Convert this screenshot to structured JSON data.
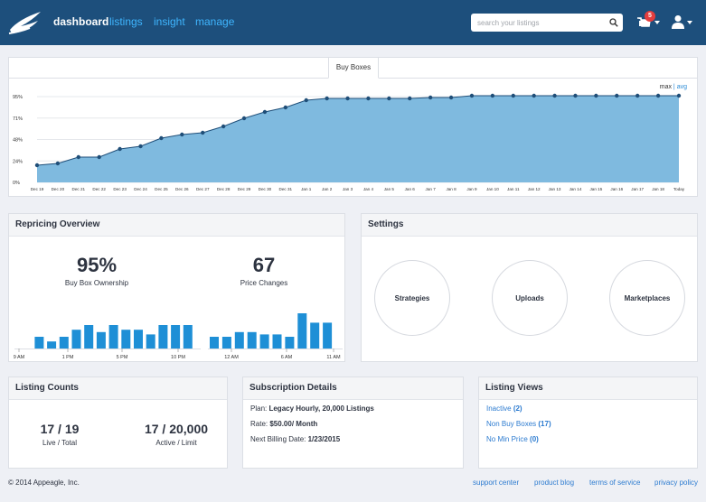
{
  "nav": {
    "links": [
      {
        "label": "dashboard",
        "active": true
      },
      {
        "label": "listings",
        "active": false
      },
      {
        "label": "insight",
        "active": false
      },
      {
        "label": "manage",
        "active": false
      }
    ],
    "search_placeholder": "search your listings",
    "notification_count": "5"
  },
  "buybox": {
    "tab_label": "Buy Boxes",
    "toggle_max": "max",
    "toggle_sep": "|",
    "toggle_avg": "avg"
  },
  "chart_data": {
    "type": "area",
    "x": [
      "Dec 19",
      "Dec 20",
      "Dec 21",
      "Dec 22",
      "Dec 23",
      "Dec 24",
      "Dec 25",
      "Dec 26",
      "Dec 27",
      "Dec 28",
      "Dec 29",
      "Dec 30",
      "Dec 31",
      "Jan 1",
      "Jan 2",
      "Jan 3",
      "Jan 4",
      "Jan 5",
      "Jan 6",
      "Jan 7",
      "Jan 8",
      "Jan 9",
      "Jan 10",
      "Jan 11",
      "Jan 12",
      "Jan 13",
      "Jan 14",
      "Jan 15",
      "Jan 16",
      "Jan 17",
      "Jan 18",
      "Today"
    ],
    "values": [
      19,
      21,
      28,
      28,
      37,
      40,
      49,
      53,
      55,
      62,
      71,
      78,
      83,
      91,
      93,
      93,
      93,
      93,
      93,
      94,
      94,
      96,
      96,
      96,
      96,
      96,
      96,
      96,
      96,
      96,
      96,
      96
    ],
    "yticks": [
      "0%",
      "24%",
      "48%",
      "71%",
      "95%"
    ],
    "ylim": [
      0,
      95
    ],
    "fill_color": "#7fbadf",
    "line_color": "#1f4e78"
  },
  "repricing": {
    "title": "Repricing Overview",
    "buybox_pct": "95%",
    "buybox_label": "Buy Box Ownership",
    "changes": "67",
    "changes_label": "Price Changes",
    "left_bars": [
      0,
      0,
      5,
      3,
      5,
      8,
      10,
      7,
      10,
      8,
      8,
      6,
      10,
      10,
      10
    ],
    "left_ticks": [
      "9 AM",
      "1 PM",
      "5 PM",
      "10 PM"
    ],
    "right_bars": [
      5,
      5,
      7,
      7,
      6,
      6,
      5,
      15,
      11,
      11
    ],
    "right_ticks": [
      "12 AM",
      "6 AM",
      "11 AM"
    ],
    "bar_color": "#1e8fd6"
  },
  "settings": {
    "title": "Settings",
    "buttons": [
      "Strategies",
      "Uploads",
      "Marketplaces"
    ]
  },
  "counts": {
    "title": "Listing Counts",
    "live_total": "17 / 19",
    "live_total_label": "Live / Total",
    "active_limit": "17 / 20,000",
    "active_limit_label": "Active / Limit"
  },
  "subscription": {
    "title": "Subscription Details",
    "plan_label": "Plan:",
    "plan_value": "Legacy Hourly, 20,000 Listings",
    "rate_label": "Rate:",
    "rate_value": "$50.00/ Month",
    "billing_label": "Next Billing Date:",
    "billing_value": "1/23/2015"
  },
  "views": {
    "title": "Listing Views",
    "items": [
      {
        "label": "Inactive",
        "count": "(2)"
      },
      {
        "label": "Non Buy Boxes",
        "count": "(17)"
      },
      {
        "label": "No Min Price",
        "count": "(0)"
      }
    ]
  },
  "footer": {
    "copyright": "© 2014 Appeagle, Inc.",
    "links": [
      "support center",
      "product blog",
      "terms of service",
      "privacy policy"
    ]
  }
}
